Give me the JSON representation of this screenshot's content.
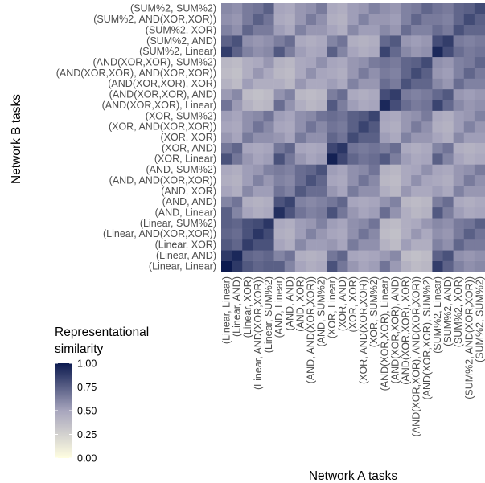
{
  "chart_data": {
    "type": "heatmap",
    "xlabel": "Network A tasks",
    "ylabel": "Network B tasks",
    "legend": {
      "title_lines": [
        "Representational",
        "similarity"
      ],
      "ticks": [
        "1.00",
        "0.75",
        "0.50",
        "0.25",
        "0.00"
      ],
      "tick_values": [
        1.0,
        0.75,
        0.5,
        0.25,
        0.0
      ],
      "range": [
        0,
        1
      ],
      "placement": "left-bottom"
    },
    "colors": {
      "low": "#fffee1",
      "mid": "#a7a5bd",
      "high": "#0c1a4f"
    },
    "categories": [
      "(Linear, Linear)",
      "(Linear, AND)",
      "(Linear, XOR)",
      "(Linear, AND(XOR,XOR))",
      "(Linear, SUM%2)",
      "(AND, Linear)",
      "(AND, AND)",
      "(AND, XOR)",
      "(AND, AND(XOR,XOR))",
      "(AND, SUM%2)",
      "(XOR, Linear)",
      "(XOR, AND)",
      "(XOR, XOR)",
      "(XOR, AND(XOR,XOR))",
      "(XOR, SUM%2)",
      "(AND(XOR,XOR), Linear)",
      "(AND(XOR,XOR), AND)",
      "(AND(XOR,XOR), XOR)",
      "(AND(XOR,XOR), AND(XOR,XOR))",
      "(AND(XOR,XOR), SUM%2)",
      "(SUM%2, Linear)",
      "(SUM%2, AND)",
      "(SUM%2, XOR)",
      "(SUM%2, AND(XOR,XOR))",
      "(SUM%2, SUM%2)"
    ],
    "x_tick_labels": [
      "(Linear, Linear)",
      "(Linear, AND)",
      "(Linear, XOR)",
      "(Linear, AND(XOR,XOR))",
      "(Linear, SUM%2)",
      "(AND, Linear)",
      "(AND, AND)",
      "(AND, XOR)",
      "(AND, AND(XOR,XOR))",
      "(AND, SUM%2)",
      "(XOR, Linear)",
      "(XOR, AND)",
      "(XOR, XOR)",
      "(XOR, AND(XOR,XOR))",
      "(XOR, SUM%2)",
      "(AND(XOR,XOR), Linear)",
      "(AND(XOR,XOR), AND)",
      "(AND(XOR,XOR), XOR)",
      "(AND(XOR,XOR), AND(XOR,XOR))",
      "(AND(XOR,XOR), SUM%2)",
      "(SUM%2, Linear)",
      "(SUM%2, AND)",
      "(SUM%2, XOR)",
      "(SUM%2, AND(XOR,XOR))",
      "(SUM%2, SUM%2)"
    ],
    "y_tick_labels_bottom_to_top": [
      "(Linear, Linear)",
      "(Linear, AND)",
      "(Linear, XOR)",
      "(Linear, AND(XOR,XOR))",
      "(Linear, SUM%2)",
      "(AND, Linear)",
      "(AND, AND)",
      "(AND, XOR)",
      "(AND, AND(XOR,XOR))",
      "(AND, SUM%2)",
      "(XOR, Linear)",
      "(XOR, AND)",
      "(XOR, XOR)",
      "(XOR, AND(XOR,XOR))",
      "(XOR, SUM%2)",
      "(AND(XOR,XOR), Linear)",
      "(AND(XOR,XOR), AND)",
      "(AND(XOR,XOR), XOR)",
      "(AND(XOR,XOR), AND(XOR,XOR))",
      "(AND(XOR,XOR), SUM%2)",
      "(SUM%2, Linear)",
      "(SUM%2, AND)",
      "(SUM%2, XOR)",
      "(SUM%2, AND(XOR,XOR))",
      "(SUM%2, SUM%2)"
    ],
    "approximate_structure": {
      "first_task_similarity": {
        "Linear": [
          0.9,
          0.45,
          0.55,
          0.3,
          0.7
        ],
        "AND": [
          0.45,
          0.7,
          0.55,
          0.35,
          0.5
        ],
        "XOR": [
          0.55,
          0.55,
          0.8,
          0.5,
          0.45
        ],
        "AND(XOR,XOR)": [
          0.3,
          0.35,
          0.5,
          0.75,
          0.65
        ],
        "SUM%2": [
          0.7,
          0.5,
          0.45,
          0.65,
          0.75
        ]
      },
      "second_task_similarity": {
        "Linear": [
          0.95,
          0.78,
          0.55,
          0.45,
          0.5
        ],
        "AND": [
          0.78,
          0.8,
          0.45,
          0.4,
          0.45
        ],
        "XOR": [
          0.55,
          0.45,
          0.65,
          0.6,
          0.6
        ],
        "AND(XOR,XOR)": [
          0.45,
          0.4,
          0.6,
          0.7,
          0.65
        ],
        "SUM%2": [
          0.5,
          0.45,
          0.6,
          0.65,
          0.7
        ]
      },
      "task_order": [
        "Linear",
        "AND",
        "XOR",
        "AND(XOR,XOR)",
        "SUM%2"
      ]
    }
  }
}
